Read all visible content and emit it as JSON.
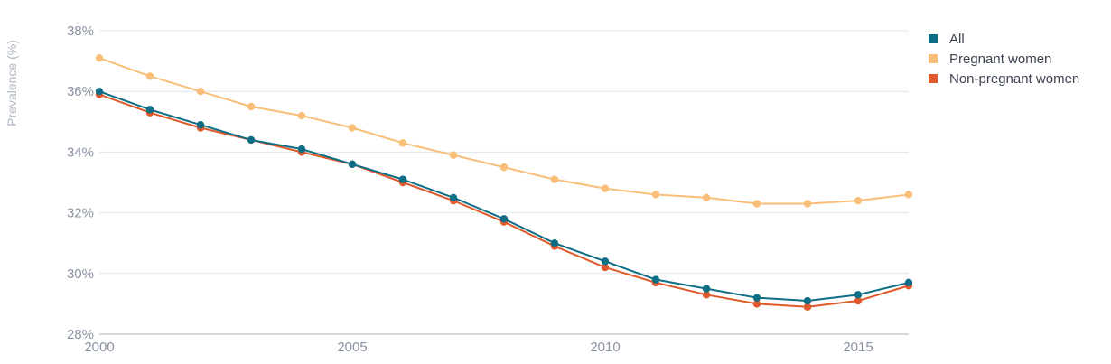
{
  "chart_data": {
    "type": "line",
    "ylabel": "Prevalence (%)",
    "xlabel": "",
    "x": [
      2000,
      2001,
      2002,
      2003,
      2004,
      2005,
      2006,
      2007,
      2008,
      2009,
      2010,
      2011,
      2012,
      2013,
      2014,
      2015,
      2016
    ],
    "xlim": [
      2000,
      2016
    ],
    "ylim": [
      28,
      38
    ],
    "xticks": [
      "2000",
      "2005",
      "2010",
      "2015"
    ],
    "yticks": [
      "28%",
      "30%",
      "32%",
      "34%",
      "36%",
      "38%"
    ],
    "grid": "horizontal",
    "legend_position": "top-right",
    "series": [
      {
        "name": "All",
        "color": "#0e6e86",
        "values": [
          36.0,
          35.4,
          34.9,
          34.4,
          34.1,
          33.6,
          33.1,
          32.5,
          31.8,
          31.0,
          30.4,
          29.8,
          29.5,
          29.2,
          29.1,
          29.3,
          29.7
        ]
      },
      {
        "name": "Pregnant women",
        "color": "#f9be78",
        "values": [
          37.1,
          36.5,
          36.0,
          35.5,
          35.2,
          34.8,
          34.3,
          33.9,
          33.5,
          33.1,
          32.8,
          32.6,
          32.5,
          32.3,
          32.3,
          32.4,
          32.6
        ]
      },
      {
        "name": "Non-pregnant women",
        "color": "#e0592a",
        "values": [
          35.9,
          35.3,
          34.8,
          34.4,
          34.0,
          33.6,
          33.0,
          32.4,
          31.7,
          30.9,
          30.2,
          29.7,
          29.3,
          29.0,
          28.9,
          29.1,
          29.6
        ]
      }
    ]
  }
}
